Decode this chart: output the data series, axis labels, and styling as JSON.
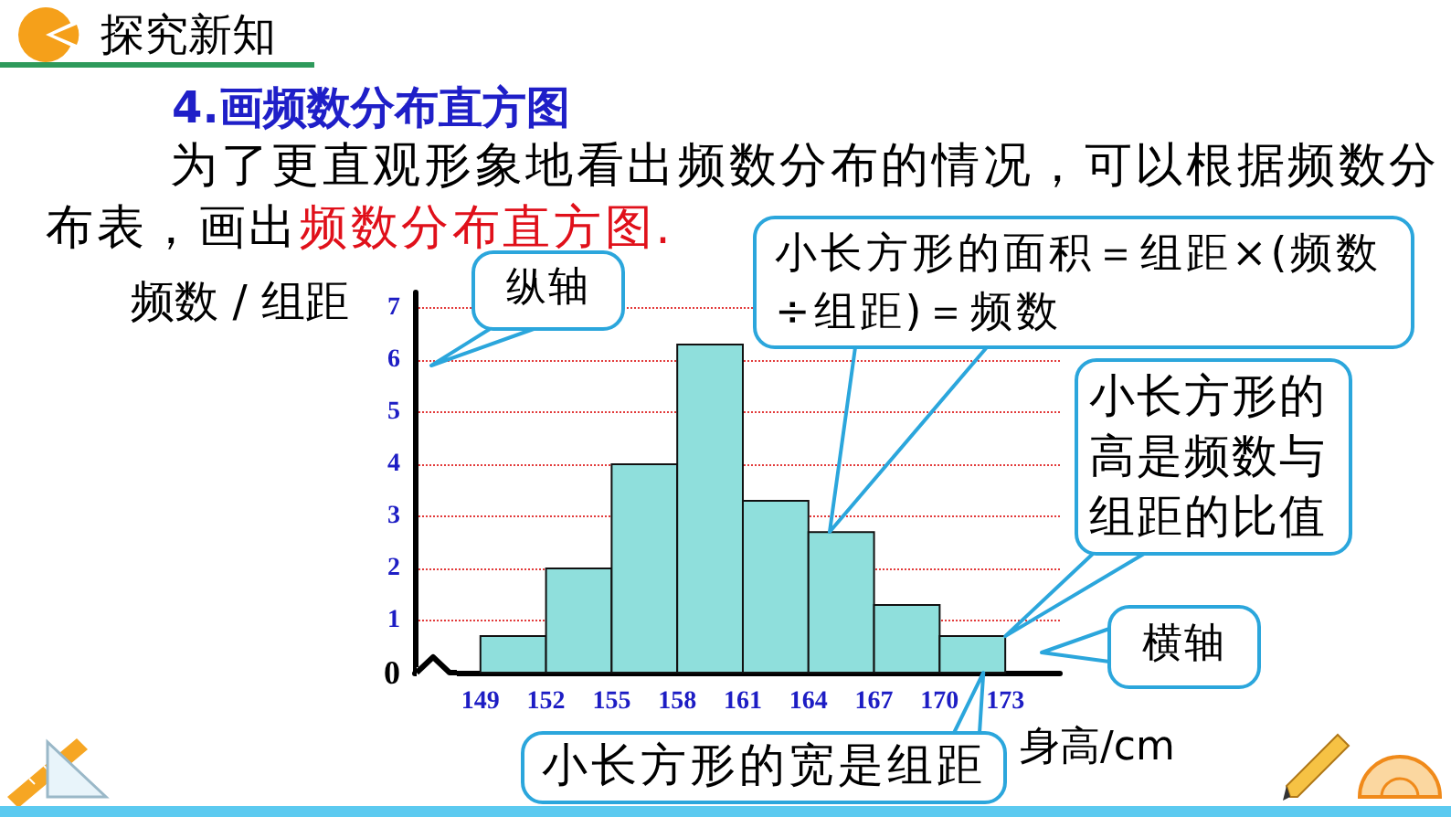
{
  "chart_data": {
    "type": "histogram",
    "title": "4.画频数分布直方图",
    "subtitle": "为了更直观形象地看出频数分布的情况，可以根据频数分布表，画出",
    "xlabel": "身高/cm",
    "ylabel": "频数 / 组距",
    "bins": [
      149,
      152,
      155,
      158,
      161,
      164,
      167,
      170,
      173
    ],
    "values": [
      0.7,
      2,
      4,
      6.3,
      3.3,
      2.7,
      1.3,
      0.7
    ],
    "color": "#8fdfdc",
    "xlim": [
      146,
      175.5
    ],
    "xticks": [
      149,
      152,
      155,
      158,
      161,
      164,
      167,
      170,
      173
    ],
    "ylim": [
      0,
      7.3
    ],
    "yticks": [
      0,
      1,
      2,
      3,
      4,
      5,
      6,
      7
    ],
    "grid": "y",
    "annotations": [
      "探究新知",
      "频数分布直方图.",
      "纵轴",
      "小长方形的面积＝组距×(频数÷组距)＝频数",
      {
        "text": "小长方形的高是频数与组距的比值",
        "x": 173,
        "y": 0.7
      },
      "横轴",
      {
        "text": "小长方形的宽是组距",
        "x": 172,
        "y": 0
      }
    ]
  }
}
